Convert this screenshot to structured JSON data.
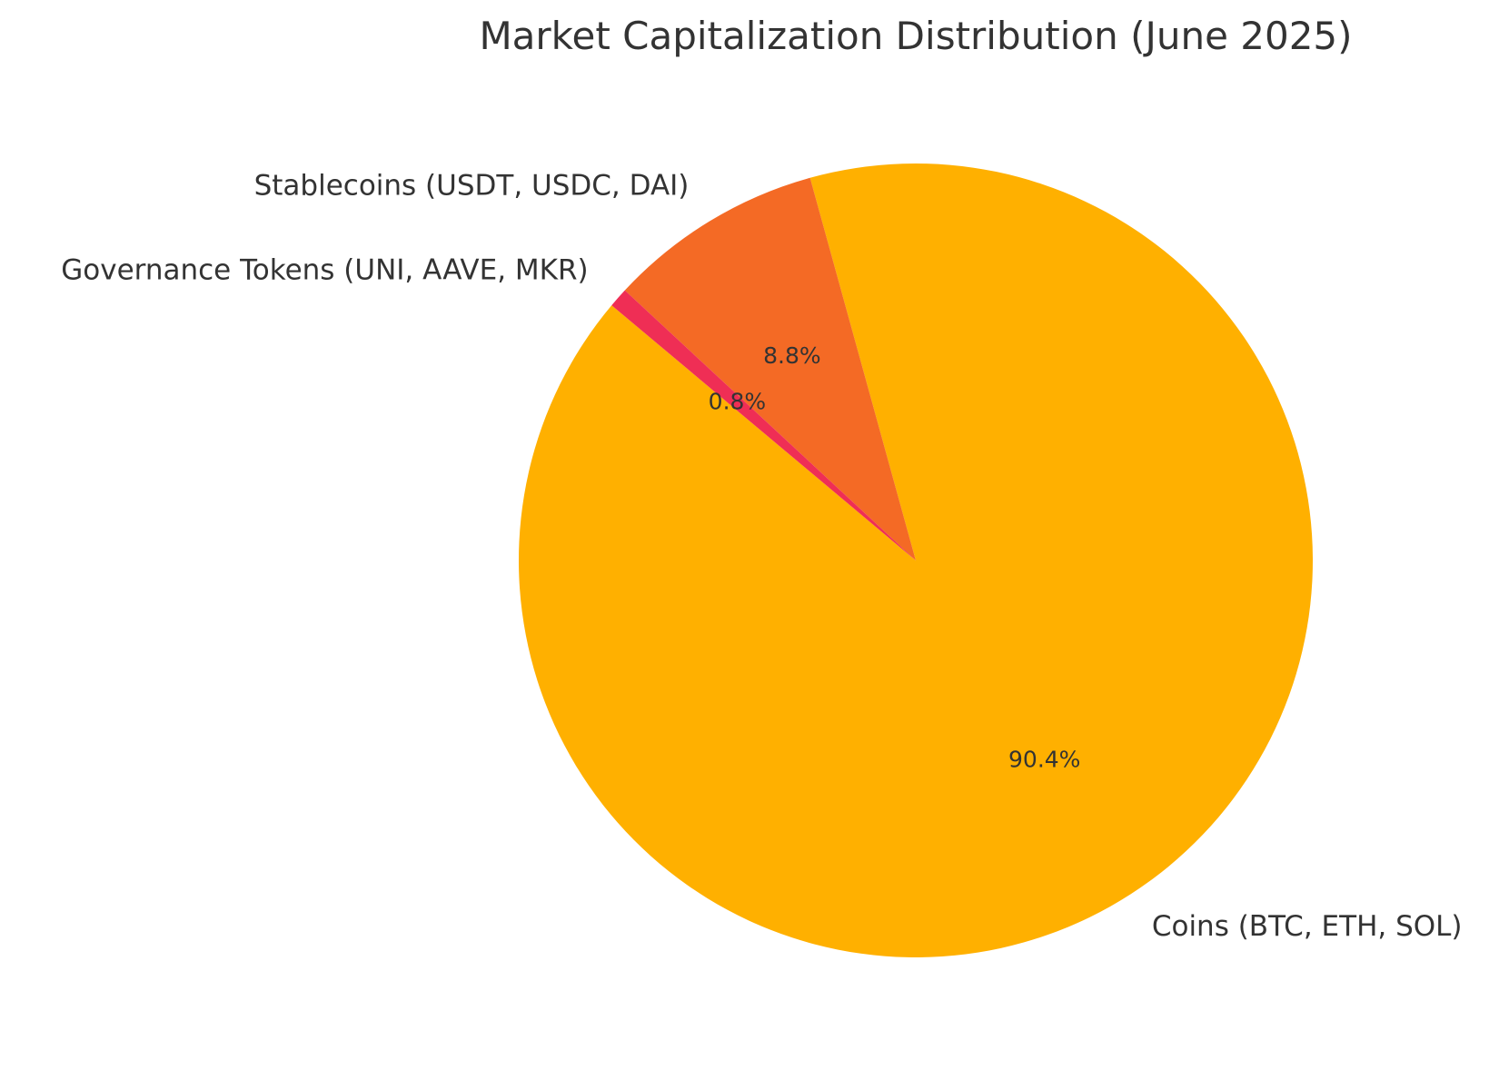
{
  "chart_data": {
    "type": "pie",
    "title": "Market Capitalization Distribution (June 2025)",
    "start_angle_deg": 140,
    "direction": "counterclockwise",
    "slices": [
      {
        "label": "Coins (BTC, ETH, SOL)",
        "value": 90.4,
        "pct_label": "90.4%",
        "color": "#FFB000"
      },
      {
        "label": "Stablecoins (USDT, USDC, DAI)",
        "value": 8.8,
        "pct_label": "8.8%",
        "color": "#F46A25"
      },
      {
        "label": "Governance Tokens (UNI, AAVE, MKR)",
        "value": 0.8,
        "pct_label": "0.8%",
        "color": "#EF2E55"
      }
    ]
  }
}
